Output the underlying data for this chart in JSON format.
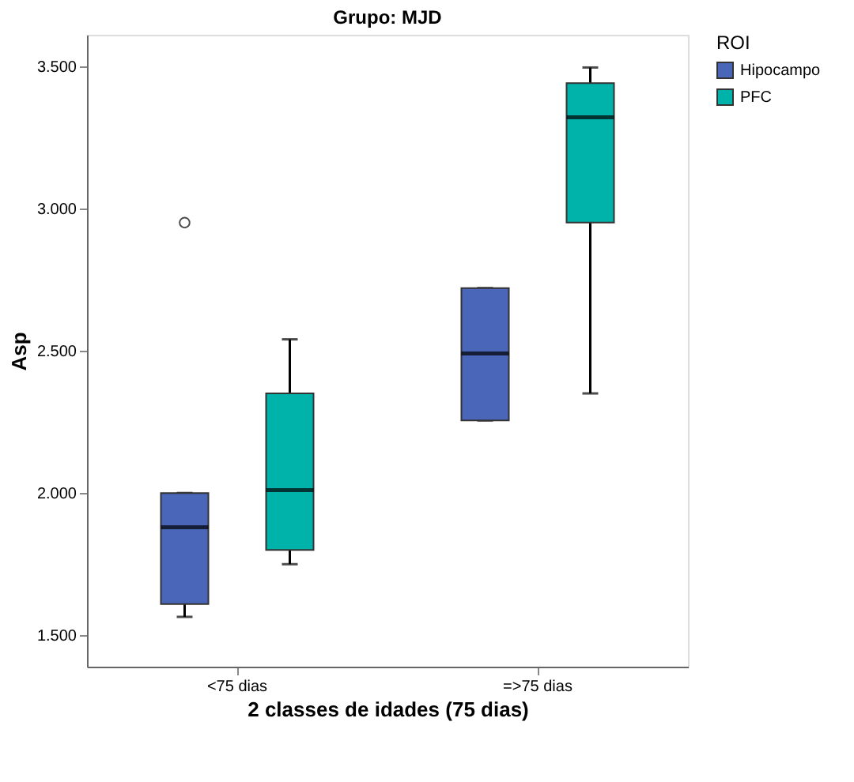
{
  "chart_data": {
    "type": "box",
    "title": "Grupo: MJD",
    "xlabel": "2 classes de idades (75 dias)",
    "ylabel": "Asp",
    "legend_title": "ROI",
    "legend": "top right",
    "grid": false,
    "categories": [
      "<75 dias",
      "=>75 dias"
    ],
    "ylim": [
      1.39,
      3.61
    ],
    "yticks": [
      {
        "value": 1.5,
        "label": "1.500"
      },
      {
        "value": 2.0,
        "label": "2.000"
      },
      {
        "value": 2.5,
        "label": "2.500"
      },
      {
        "value": 3.0,
        "label": "3.000"
      },
      {
        "value": 3.5,
        "label": "3.500"
      }
    ],
    "series": [
      {
        "name": "Hipocampo",
        "color": "#4a66b8",
        "boxes": [
          {
            "low": 1.565,
            "q1": 1.61,
            "median": 1.88,
            "q3": 2.0,
            "high": 2.0,
            "outliers": [
              2.95
            ]
          },
          {
            "low": 2.255,
            "q1": 2.255,
            "median": 2.49,
            "q3": 2.72,
            "high": 2.72
          }
        ]
      },
      {
        "name": "PFC",
        "color": "#00b3aa",
        "boxes": [
          {
            "low": 1.75,
            "q1": 1.8,
            "median": 2.01,
            "q3": 2.35,
            "high": 2.54
          },
          {
            "low": 2.35,
            "q1": 2.95,
            "median": 3.32,
            "q3": 3.44,
            "high": 3.495
          }
        ]
      }
    ]
  }
}
